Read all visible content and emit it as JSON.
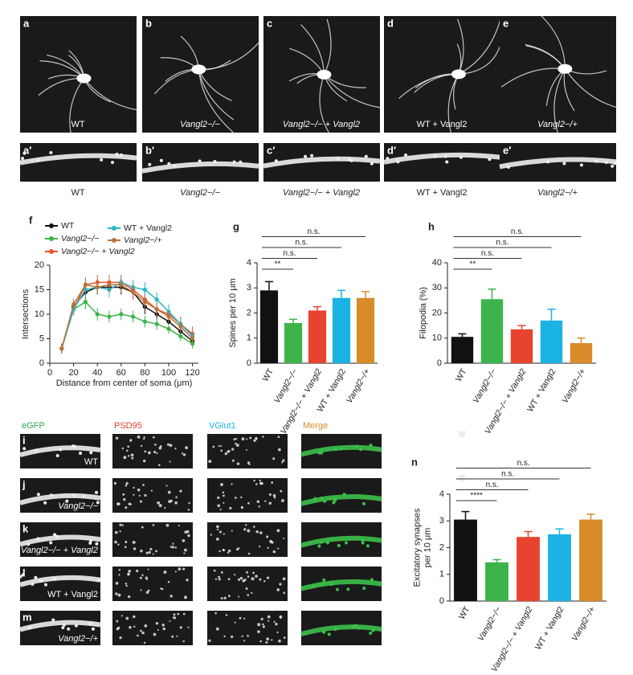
{
  "images": {
    "row1": [
      {
        "label": "a",
        "caption": "WT"
      },
      {
        "label": "b",
        "caption": "Vangl2−/−"
      },
      {
        "label": "c",
        "caption": "Vangl2−/− + Vangl2"
      },
      {
        "label": "d",
        "caption": "WT + Vangl2"
      },
      {
        "label": "e",
        "caption": "Vangl2−/+"
      }
    ],
    "row2": [
      {
        "label": "a′",
        "caption": "WT"
      },
      {
        "label": "b′",
        "caption": "Vangl2−/−"
      },
      {
        "label": "c′",
        "caption": "Vangl2−/− + Vangl2"
      },
      {
        "label": "d′",
        "caption": "WT + Vangl2"
      },
      {
        "label": "e′",
        "caption": "Vangl2−/+"
      }
    ],
    "grid": {
      "headers": [
        {
          "text": "eGFP",
          "color": "#2aa84a"
        },
        {
          "text": "PSD95",
          "color": "#e0432f"
        },
        {
          "text": "VGlut1",
          "color": "#1bb3e3"
        },
        {
          "text": "Merge",
          "color": "#d98a2a"
        }
      ],
      "rows": [
        {
          "label": "i",
          "caption": "WT"
        },
        {
          "label": "j",
          "caption": "Vangl2−/−"
        },
        {
          "label": "k",
          "caption": "Vangl2−/− + Vangl2"
        },
        {
          "label": "l",
          "caption": "WT + Vangl2"
        },
        {
          "label": "m",
          "caption": "Vangl2−/+"
        }
      ]
    }
  },
  "chart_data": [
    {
      "type": "line",
      "label": "f",
      "xlabel": "Distance from center of soma (μm)",
      "ylabel": "Intersections",
      "x": [
        10,
        20,
        30,
        40,
        50,
        60,
        70,
        80,
        90,
        100,
        110,
        120
      ],
      "xlim": [
        0,
        125
      ],
      "xticks": [
        0,
        20,
        40,
        60,
        80,
        100,
        120
      ],
      "ylim": [
        0,
        20
      ],
      "yticks": [
        0,
        5,
        10,
        15,
        20
      ],
      "series": [
        {
          "name": "WT",
          "color": "#111111",
          "values": [
            3,
            11.5,
            14.5,
            15.5,
            15.5,
            15.5,
            14.5,
            11.5,
            10,
            8.5,
            6.5,
            4.5
          ],
          "errors": [
            1,
            1.2,
            1.5,
            1.5,
            1.5,
            1.5,
            1.5,
            1.5,
            1.2,
            1.2,
            1,
            1
          ]
        },
        {
          "name": "Vangl2−/−",
          "color": "#3cb44a",
          "values": [
            3,
            11,
            12.5,
            10,
            9.5,
            10,
            9.5,
            8.5,
            8,
            7,
            5.5,
            4
          ],
          "errors": [
            1,
            1.2,
            1.5,
            1.3,
            1.2,
            1.2,
            1.2,
            1.2,
            1.2,
            1,
            1,
            1
          ]
        },
        {
          "name": "Vangl2−/− + Vangl2",
          "color": "#e8542f",
          "values": [
            3,
            11,
            16,
            16.5,
            16.5,
            16.5,
            15,
            13,
            11,
            10,
            8,
            6
          ],
          "errors": [
            1,
            1.2,
            1.5,
            1.5,
            1.5,
            1.5,
            1.5,
            1.5,
            1.5,
            1.5,
            1.5,
            1.5
          ]
        },
        {
          "name": "WT + Vangl2",
          "color": "#2ab5c8",
          "values": [
            3,
            11,
            15,
            15.5,
            15,
            16.5,
            15.5,
            15,
            13,
            10.5,
            8,
            5.5
          ],
          "errors": [
            1,
            1.2,
            1.5,
            1.5,
            1.5,
            1.5,
            1.5,
            1.5,
            1.5,
            1.5,
            1.2,
            1
          ]
        },
        {
          "name": "Vangl2−/+",
          "color": "#b8733a",
          "values": [
            3,
            12,
            16,
            15.5,
            16,
            16,
            14.5,
            12.5,
            11,
            9.5,
            7.5,
            5
          ],
          "errors": [
            1,
            1.2,
            1.5,
            1.5,
            1.5,
            1.5,
            1.5,
            1.5,
            1.5,
            1.2,
            1.2,
            1
          ]
        }
      ]
    },
    {
      "type": "bar",
      "label": "g",
      "ylabel": "Spines per 10 μm",
      "categories": [
        "WT",
        "Vangl2−/−",
        "Vangl2−/− + Vangl2",
        "WT + Vangl2",
        "Vangl2−/+"
      ],
      "colors": [
        "#111111",
        "#3cb44a",
        "#e8432f",
        "#1bb3e3",
        "#d98a2a"
      ],
      "values": [
        2.9,
        1.6,
        2.1,
        2.6,
        2.6
      ],
      "errors": [
        0.35,
        0.15,
        0.15,
        0.3,
        0.25
      ],
      "ylim": [
        0,
        4
      ],
      "yticks": [
        0,
        1,
        2,
        3,
        4
      ],
      "significance": [
        "**",
        "n.s.",
        "n.s.",
        "n.s."
      ]
    },
    {
      "type": "bar",
      "label": "h",
      "ylabel": "Filopodia (%)",
      "categories": [
        "WT",
        "Vangl2−/−",
        "Vangl2−/− + Vangl2",
        "WT + Vangl2",
        "Vangl2−/+"
      ],
      "colors": [
        "#111111",
        "#3cb44a",
        "#e8432f",
        "#1bb3e3",
        "#d98a2a"
      ],
      "values": [
        10.5,
        25.5,
        13.5,
        17,
        8
      ],
      "errors": [
        1.2,
        4,
        1.5,
        4.5,
        2
      ],
      "ylim": [
        0,
        40
      ],
      "yticks": [
        0,
        10,
        20,
        30,
        40
      ],
      "significance": [
        "**",
        "n.s.",
        "n.s.",
        "n.s."
      ]
    },
    {
      "type": "bar",
      "label": "n",
      "ylabel": [
        "Excitatory synapses",
        "per 10 μm"
      ],
      "categories": [
        "WT",
        "Vangl2−/−",
        "Vangl2−/− + Vangl2",
        "WT + Vangl2",
        "Vangl2−/+"
      ],
      "colors": [
        "#111111",
        "#3cb44a",
        "#e8432f",
        "#1bb3e3",
        "#d98a2a"
      ],
      "values": [
        3.05,
        1.45,
        2.4,
        2.5,
        3.05
      ],
      "errors": [
        0.3,
        0.1,
        0.2,
        0.2,
        0.2
      ],
      "ylim": [
        0,
        4
      ],
      "yticks": [
        0,
        1,
        2,
        3,
        4
      ],
      "significance": [
        "****",
        "n.s.",
        "n.s.",
        "n.s."
      ]
    }
  ]
}
